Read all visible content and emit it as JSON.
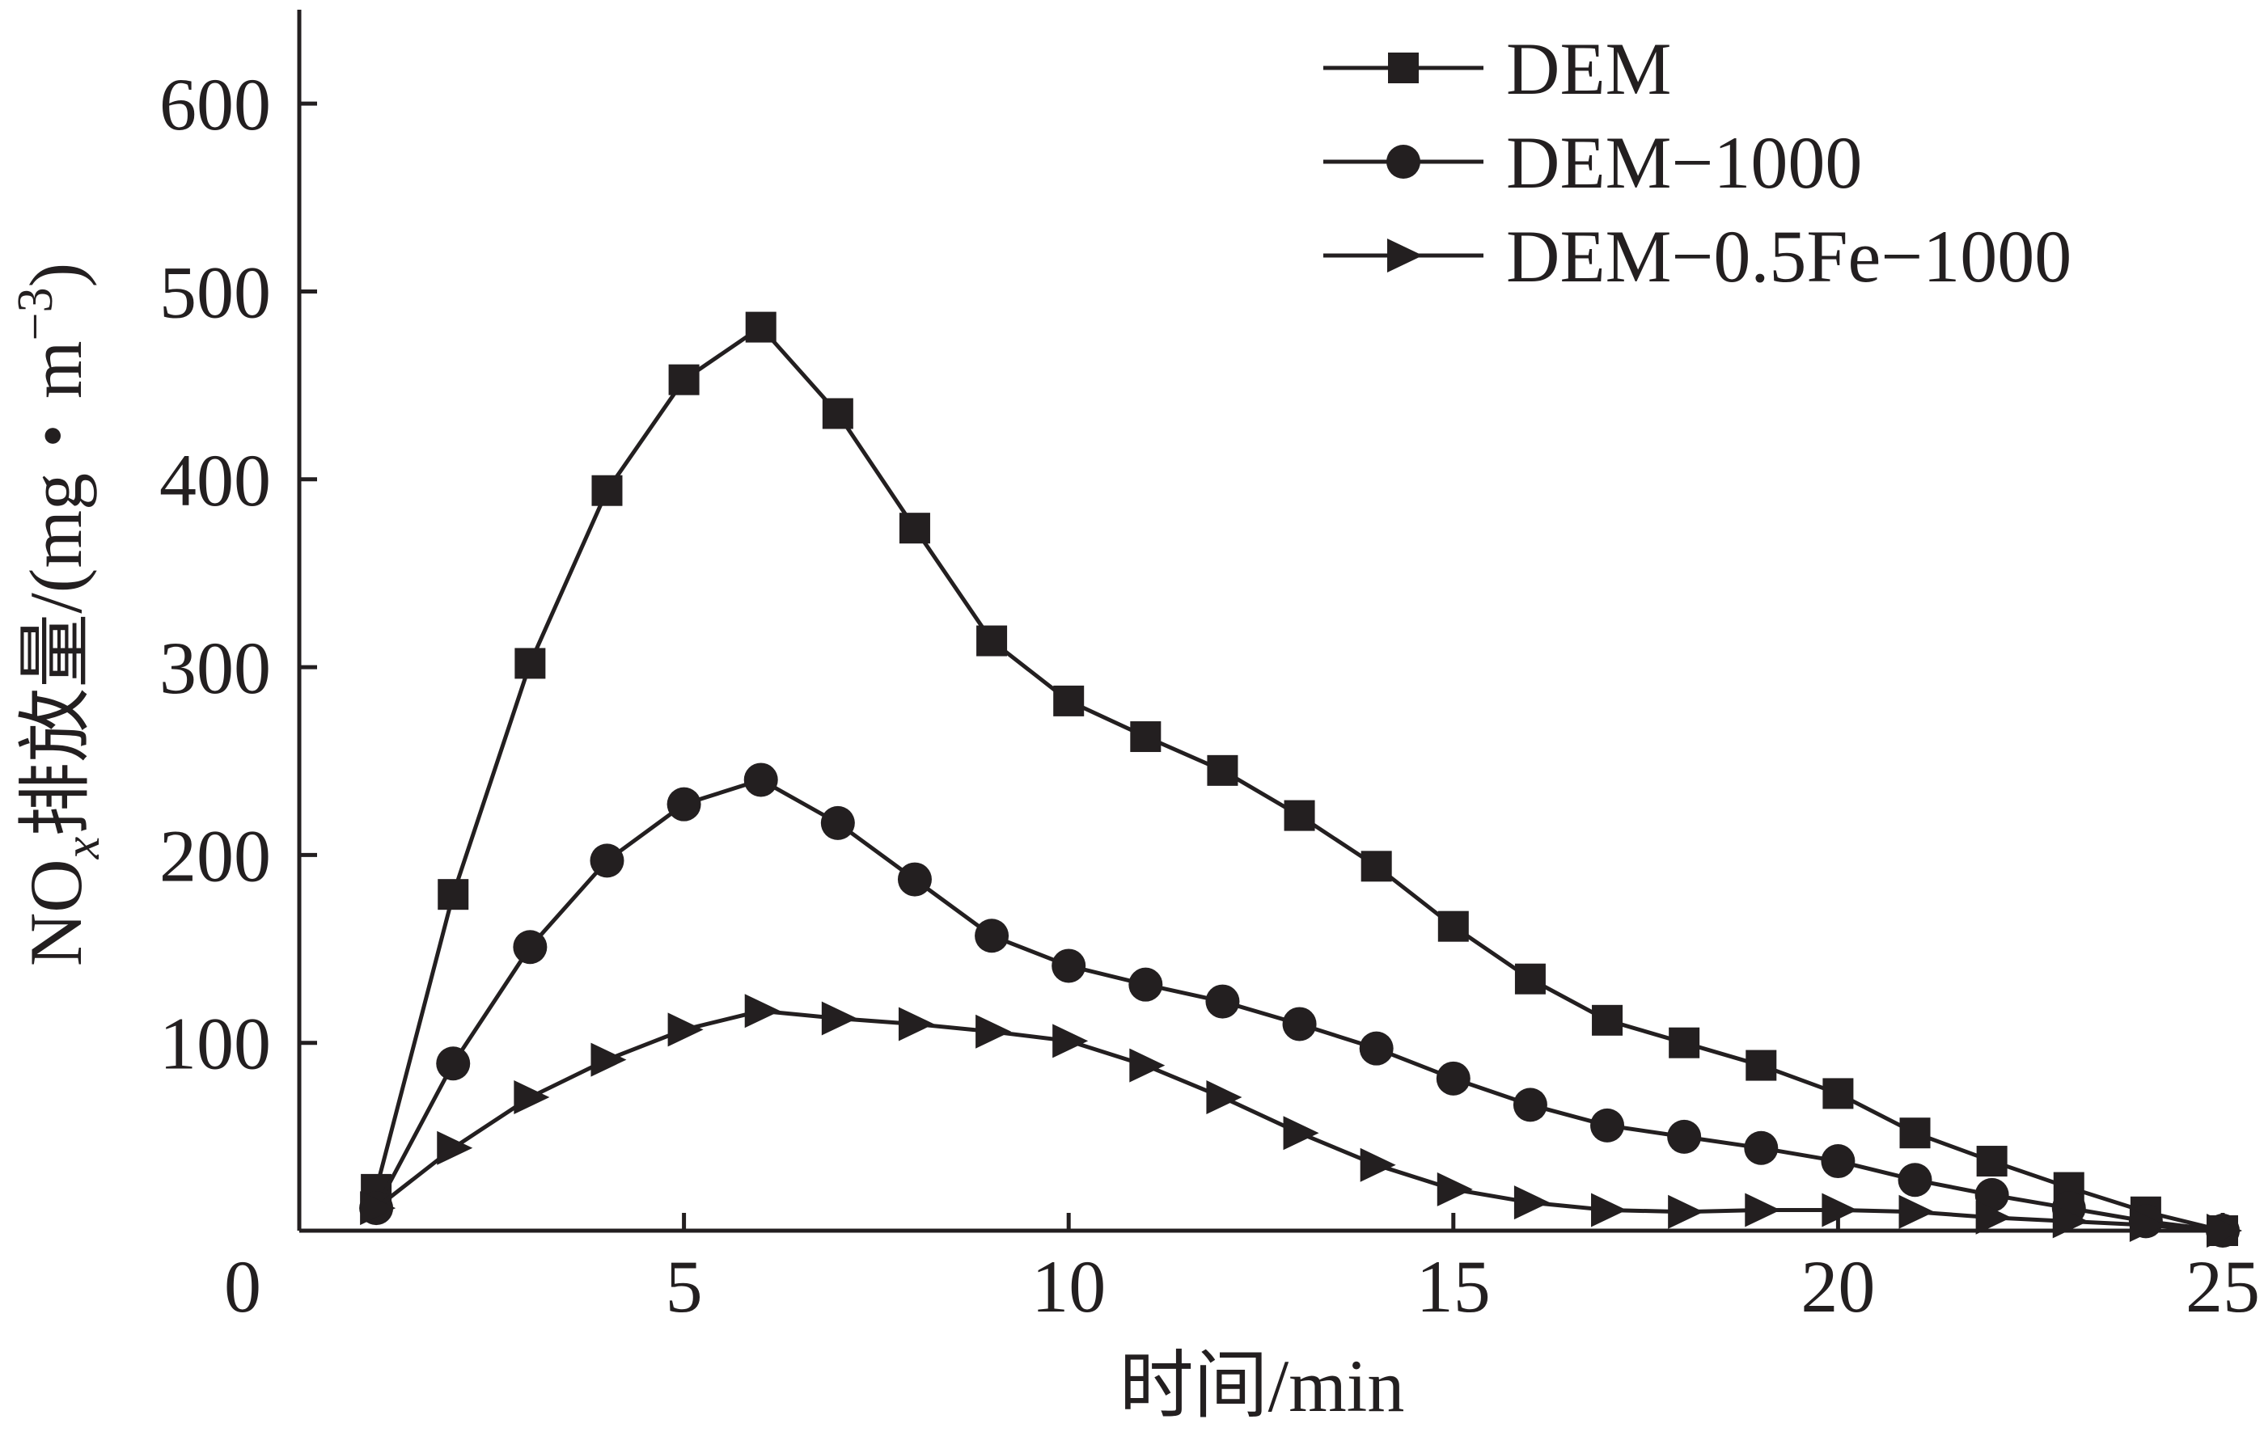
{
  "chart_data": {
    "type": "line",
    "xlabel": "时间/min",
    "ylabel": {
      "main": "NO",
      "subscript": "x",
      "rest": "排放量/(mg・m",
      "superscript": "−3",
      "close": ")"
    },
    "xlim": [
      0,
      25
    ],
    "ylim": [
      0,
      650
    ],
    "x_ticks": [
      0,
      5,
      10,
      15,
      20,
      25
    ],
    "y_ticks": [
      100,
      200,
      300,
      400,
      500,
      600
    ],
    "grid": false,
    "legend_position": "top-right",
    "colors": {
      "line": "#231f20",
      "background": "#ffffff"
    },
    "x": [
      1,
      2,
      3,
      4,
      5,
      6,
      7,
      8,
      9,
      10,
      11,
      12,
      13,
      14,
      15,
      16,
      17,
      18,
      19,
      20,
      21,
      22,
      23,
      24,
      25
    ],
    "series": [
      {
        "name": "DEM",
        "marker": "square",
        "values": [
          22,
          179,
          302,
          394,
          453,
          481,
          435,
          374,
          314,
          282,
          263,
          245,
          221,
          194,
          162,
          134,
          112,
          100,
          88,
          73,
          52,
          37,
          23,
          10,
          0
        ]
      },
      {
        "name": "DEM−1000",
        "marker": "circle",
        "values": [
          12,
          89,
          151,
          197,
          227,
          240,
          217,
          187,
          157,
          141,
          131,
          122,
          110,
          97,
          81,
          67,
          56,
          50,
          44,
          37,
          27,
          19,
          12,
          5,
          0
        ]
      },
      {
        "name": "DEM−0.5Fe−1000",
        "marker": "triangle-right",
        "values": [
          12,
          44,
          71,
          91,
          107,
          117,
          113,
          110,
          106,
          101,
          88,
          71,
          52,
          35,
          22,
          15,
          11,
          10,
          11,
          11,
          10,
          7,
          5,
          3,
          0
        ]
      }
    ]
  }
}
